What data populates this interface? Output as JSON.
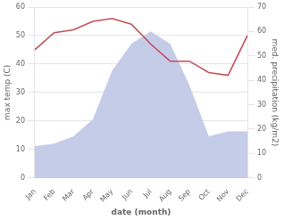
{
  "chart_data": {
    "type": "line",
    "categories": [
      "Jan",
      "Feb",
      "Mar",
      "Apr",
      "May",
      "Jun",
      "Jul",
      "Aug",
      "Sep",
      "Oct",
      "Nov",
      "Dec"
    ],
    "series": [
      {
        "type": "area",
        "color": "#c5cce8",
        "axis": "y2",
        "values": [
          13,
          14,
          17,
          24,
          44,
          55,
          60,
          55,
          38,
          17,
          19,
          19
        ]
      },
      {
        "type": "line",
        "color": "#c0505a",
        "values": [
          45,
          51,
          52,
          55,
          56,
          54,
          47,
          41,
          41,
          37,
          36,
          50
        ]
      }
    ],
    "xlabel": "date (month)",
    "ylabel": "max temp (C)",
    "y2label": "med. precipitation (kg/m2)",
    "ylim": [
      0,
      60
    ],
    "yticks": [
      0,
      10,
      20,
      30,
      40,
      50,
      60
    ],
    "y2lim": [
      0,
      70
    ],
    "y2ticks": [
      0,
      10,
      20,
      30,
      40,
      50,
      60,
      70
    ],
    "grid": true
  }
}
